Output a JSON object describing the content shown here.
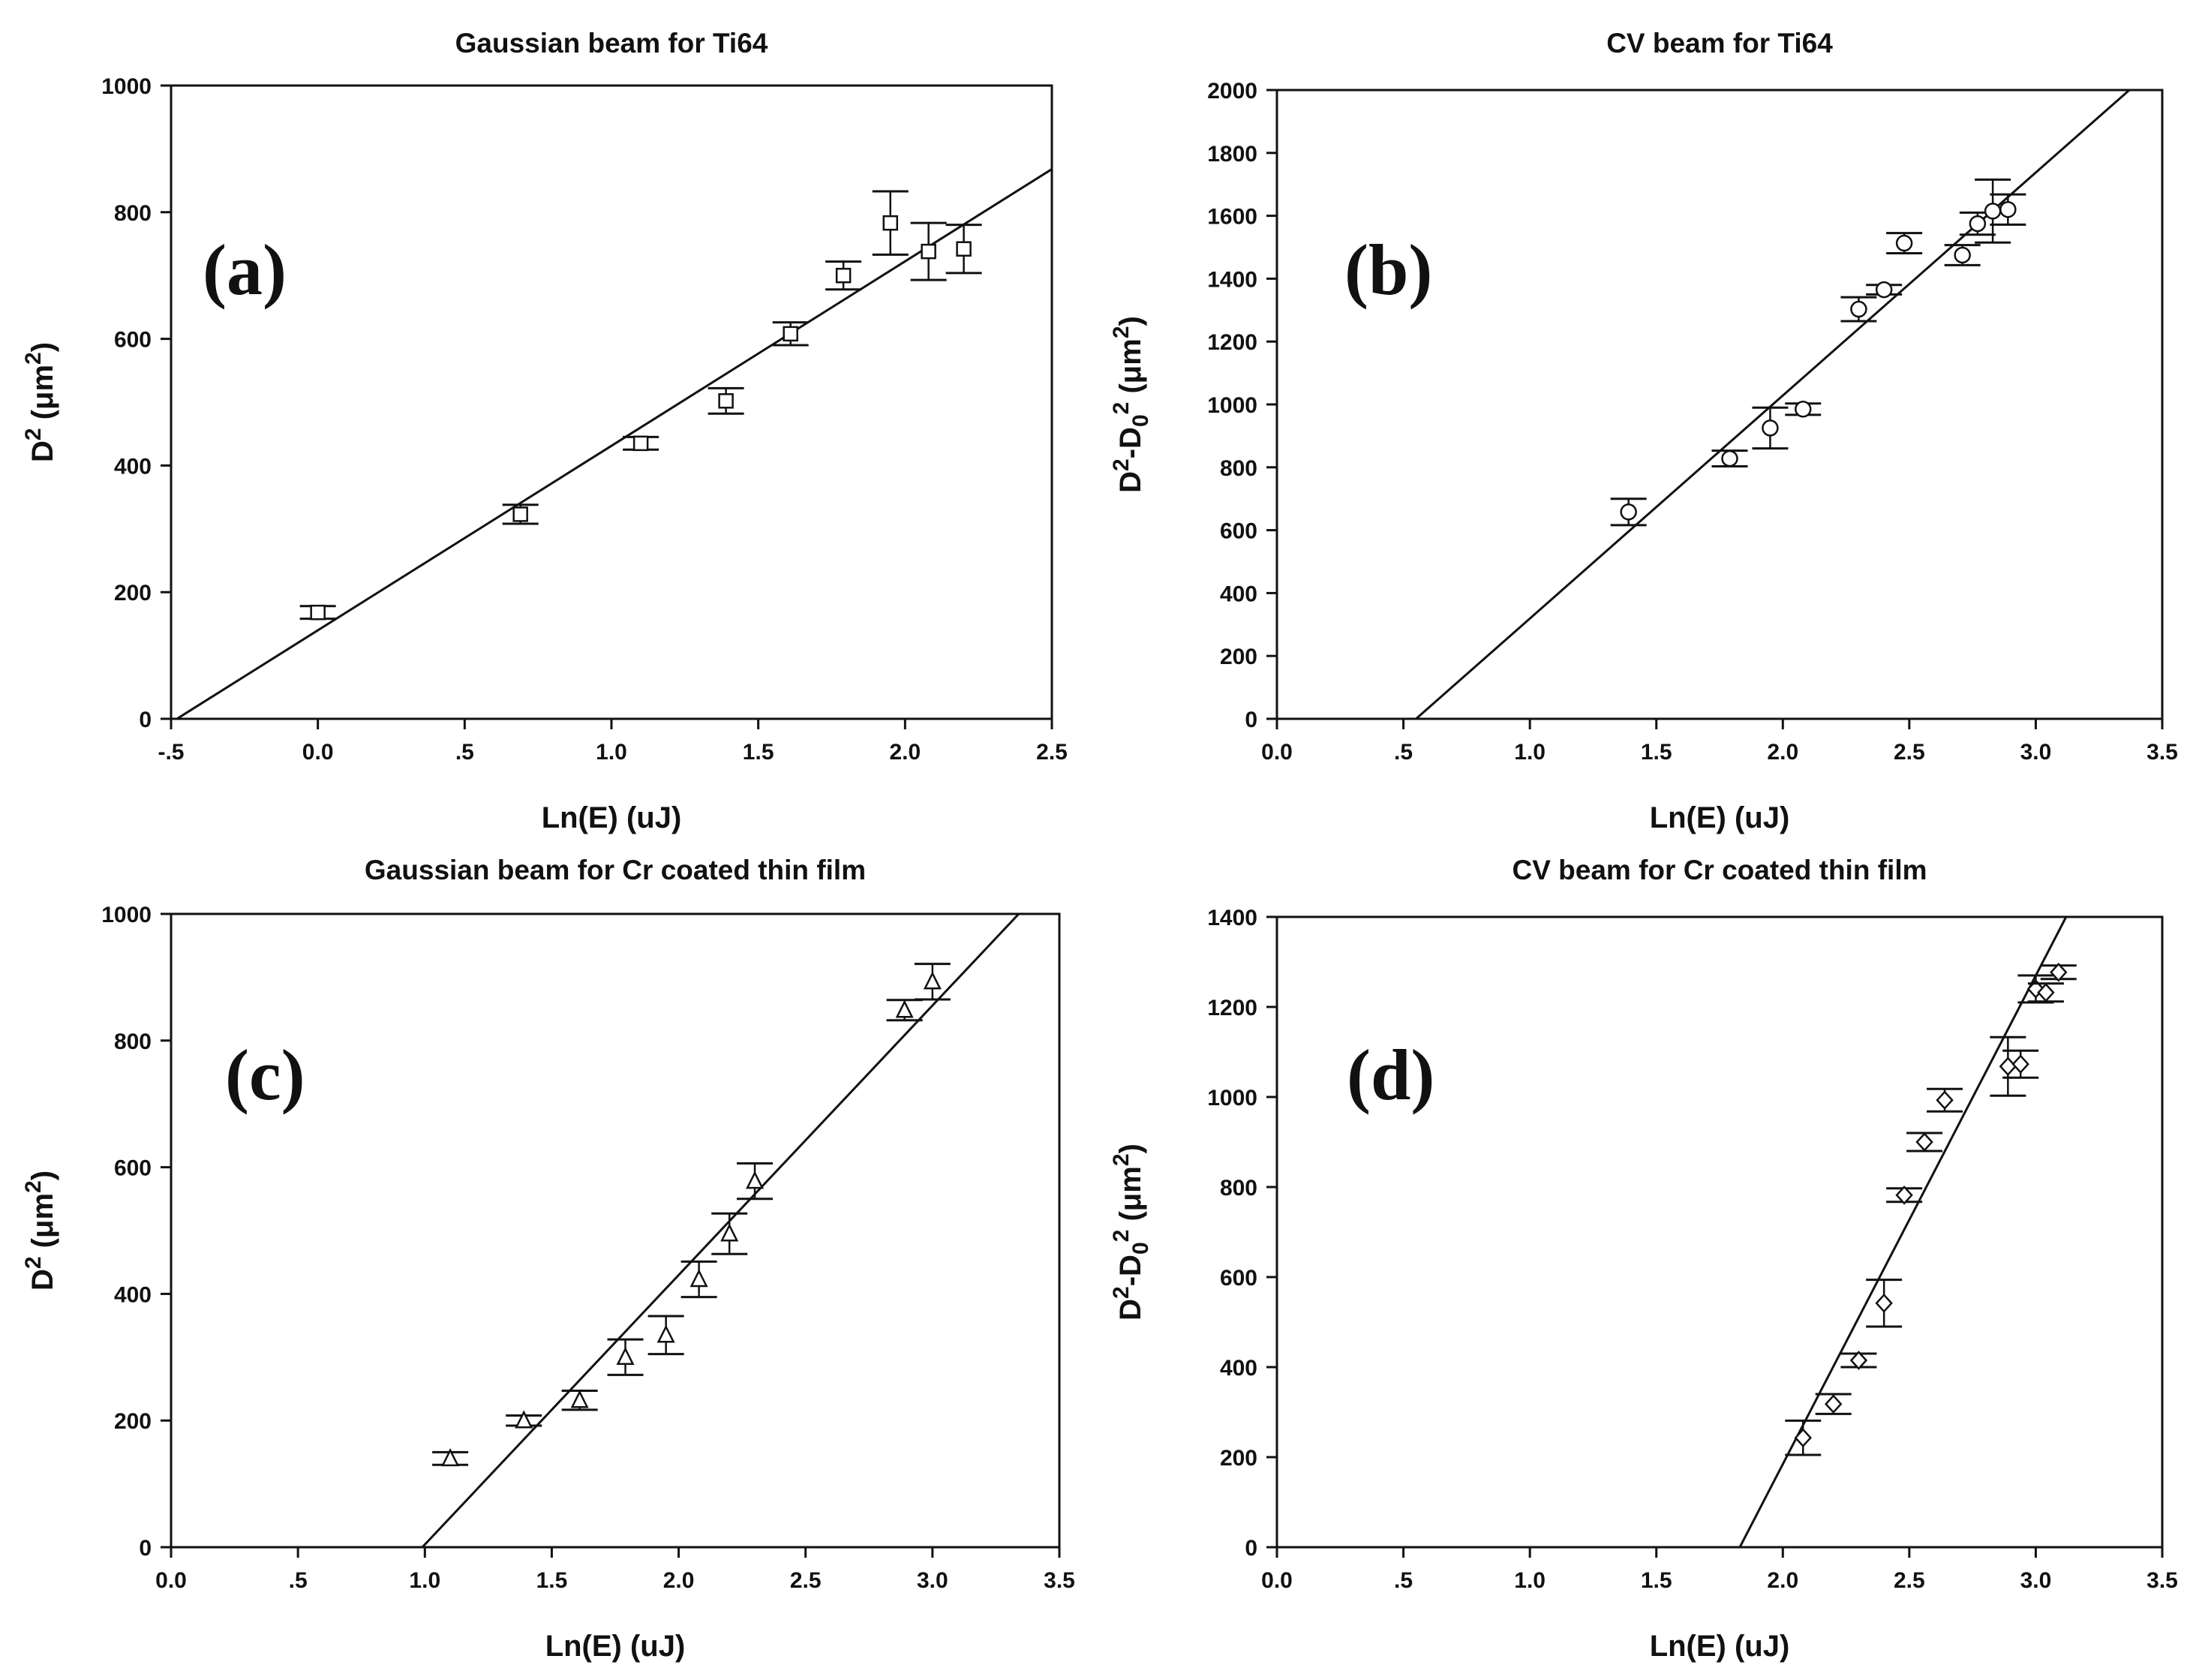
{
  "chart_data": [
    {
      "id": "a",
      "type": "scatter",
      "title": "Gaussian beam for Ti64",
      "panel_label": "(a)",
      "xlabel": "Ln(E) (uJ)",
      "ylabel": {
        "base": "D",
        "sup": "2",
        "unit_open": " (",
        "mu": "μ",
        "unit": "m",
        "unit_sup": "2",
        "unit_close": ")"
      },
      "xlim": [
        -0.5,
        2.5
      ],
      "ylim": [
        0,
        1000
      ],
      "xticks": [
        -0.5,
        0,
        0.5,
        1,
        1.5,
        2,
        2.5
      ],
      "xtick_labels": [
        "-.5",
        "0.0",
        ".5",
        "1.0",
        "1.5",
        "2.0",
        "2.5"
      ],
      "yticks": [
        0,
        200,
        400,
        600,
        800,
        1000
      ],
      "ytick_labels": [
        "0",
        "200",
        "400",
        "600",
        "800",
        "1000"
      ],
      "marker": "square",
      "points": [
        {
          "x": 0.0,
          "y": 168,
          "err": 10
        },
        {
          "x": 0.69,
          "y": 323,
          "err": 15
        },
        {
          "x": 1.1,
          "y": 435,
          "err": 10
        },
        {
          "x": 1.39,
          "y": 502,
          "err": 20
        },
        {
          "x": 1.61,
          "y": 608,
          "err": 18
        },
        {
          "x": 1.79,
          "y": 700,
          "err": 22
        },
        {
          "x": 1.95,
          "y": 783,
          "err": 50
        },
        {
          "x": 2.08,
          "y": 738,
          "err": 45
        },
        {
          "x": 2.2,
          "y": 742,
          "err": 38
        }
      ],
      "fit": {
        "x": [
          -0.48,
          2.5
        ],
        "y": [
          0,
          868
        ]
      }
    },
    {
      "id": "b",
      "type": "scatter",
      "title": "CV beam for Ti64",
      "panel_label": "(b)",
      "xlabel": "Ln(E) (uJ)",
      "ylabel": {
        "base": "D",
        "sup": "2",
        "mid": "-D",
        "sub": "0",
        "sup2": "2",
        "unit_open": " (",
        "mu": "μ",
        "unit": "m",
        "unit_sup": "2",
        "unit_close": ")"
      },
      "xlim": [
        0,
        3.5
      ],
      "ylim": [
        0,
        2000
      ],
      "xticks": [
        0,
        0.5,
        1,
        1.5,
        2,
        2.5,
        3,
        3.5
      ],
      "xtick_labels": [
        "0.0",
        ".5",
        "1.0",
        "1.5",
        "2.0",
        "2.5",
        "3.0",
        "3.5"
      ],
      "yticks": [
        0,
        200,
        400,
        600,
        800,
        1000,
        1200,
        1400,
        1600,
        1800,
        2000
      ],
      "ytick_labels": [
        "0",
        "200",
        "400",
        "600",
        "800",
        "1000",
        "1200",
        "1400",
        "1600",
        "1800",
        "2000"
      ],
      "marker": "circle",
      "points": [
        {
          "x": 1.39,
          "y": 658,
          "err": 42
        },
        {
          "x": 1.79,
          "y": 828,
          "err": 25
        },
        {
          "x": 1.95,
          "y": 925,
          "err": 65
        },
        {
          "x": 2.08,
          "y": 985,
          "err": 18
        },
        {
          "x": 2.3,
          "y": 1303,
          "err": 38
        },
        {
          "x": 2.4,
          "y": 1365,
          "err": 15
        },
        {
          "x": 2.48,
          "y": 1513,
          "err": 32
        },
        {
          "x": 2.71,
          "y": 1475,
          "err": 32
        },
        {
          "x": 2.77,
          "y": 1575,
          "err": 35
        },
        {
          "x": 2.83,
          "y": 1615,
          "err": 100
        },
        {
          "x": 2.89,
          "y": 1620,
          "err": 48
        }
      ],
      "fit": {
        "x": [
          0.55,
          3.37
        ],
        "y": [
          0,
          2000
        ]
      }
    },
    {
      "id": "c",
      "type": "scatter",
      "title": "Gaussian beam for Cr coated thin film",
      "panel_label": "(c)",
      "xlabel": "Ln(E) (uJ)",
      "ylabel": {
        "base": "D",
        "sup": "2",
        "unit_open": " (",
        "mu": "μ",
        "unit": "m",
        "unit_sup": "2",
        "unit_close": ")"
      },
      "xlim": [
        0,
        3.5
      ],
      "ylim": [
        0,
        1000
      ],
      "xticks": [
        0,
        0.5,
        1,
        1.5,
        2,
        2.5,
        3,
        3.5
      ],
      "xtick_labels": [
        "0.0",
        ".5",
        "1.0",
        "1.5",
        "2.0",
        "2.5",
        "3.0",
        "3.5"
      ],
      "yticks": [
        0,
        200,
        400,
        600,
        800,
        1000
      ],
      "ytick_labels": [
        "0",
        "200",
        "400",
        "600",
        "800",
        "1000"
      ],
      "marker": "triangle",
      "points": [
        {
          "x": 1.1,
          "y": 140,
          "err": 10
        },
        {
          "x": 1.39,
          "y": 200,
          "err": 8
        },
        {
          "x": 1.61,
          "y": 232,
          "err": 15
        },
        {
          "x": 1.79,
          "y": 300,
          "err": 28
        },
        {
          "x": 1.95,
          "y": 335,
          "err": 30
        },
        {
          "x": 2.08,
          "y": 423,
          "err": 28
        },
        {
          "x": 2.2,
          "y": 495,
          "err": 32
        },
        {
          "x": 2.3,
          "y": 578,
          "err": 28
        },
        {
          "x": 2.89,
          "y": 848,
          "err": 16
        },
        {
          "x": 3.0,
          "y": 893,
          "err": 28
        }
      ],
      "fit": {
        "x": [
          0.99,
          3.34
        ],
        "y": [
          0,
          1000
        ]
      }
    },
    {
      "id": "d",
      "type": "scatter",
      "title": "CV beam for Cr coated thin film",
      "panel_label": "(d)",
      "xlabel": "Ln(E) (uJ)",
      "ylabel": {
        "base": "D",
        "sup": "2",
        "mid": "-D",
        "sub": "0",
        "sup2": "2",
        "unit_open": " (",
        "mu": "μ",
        "unit": "m",
        "unit_sup": "2",
        "unit_close": ")"
      },
      "xlim": [
        0,
        3.5
      ],
      "ylim": [
        0,
        1400
      ],
      "xticks": [
        0,
        0.5,
        1,
        1.5,
        2,
        2.5,
        3,
        3.5
      ],
      "xtick_labels": [
        "0.0",
        ".5",
        "1.0",
        "1.5",
        "2.0",
        "2.5",
        "3.0",
        "3.5"
      ],
      "yticks": [
        0,
        200,
        400,
        600,
        800,
        1000,
        1200,
        1400
      ],
      "ytick_labels": [
        "0",
        "200",
        "400",
        "600",
        "800",
        "1000",
        "1200",
        "1400"
      ],
      "marker": "diamond",
      "points": [
        {
          "x": 2.08,
          "y": 243,
          "err": 38
        },
        {
          "x": 2.2,
          "y": 318,
          "err": 22
        },
        {
          "x": 2.3,
          "y": 415,
          "err": 15
        },
        {
          "x": 2.4,
          "y": 542,
          "err": 52
        },
        {
          "x": 2.48,
          "y": 782,
          "err": 15
        },
        {
          "x": 2.56,
          "y": 900,
          "err": 20
        },
        {
          "x": 2.64,
          "y": 993,
          "err": 25
        },
        {
          "x": 2.89,
          "y": 1068,
          "err": 65
        },
        {
          "x": 2.94,
          "y": 1073,
          "err": 30
        },
        {
          "x": 3.0,
          "y": 1240,
          "err": 30
        },
        {
          "x": 3.04,
          "y": 1232,
          "err": 20
        },
        {
          "x": 3.09,
          "y": 1277,
          "err": 15
        }
      ],
      "fit": {
        "x": [
          1.83,
          3.12
        ],
        "y": [
          0,
          1400
        ]
      }
    }
  ]
}
